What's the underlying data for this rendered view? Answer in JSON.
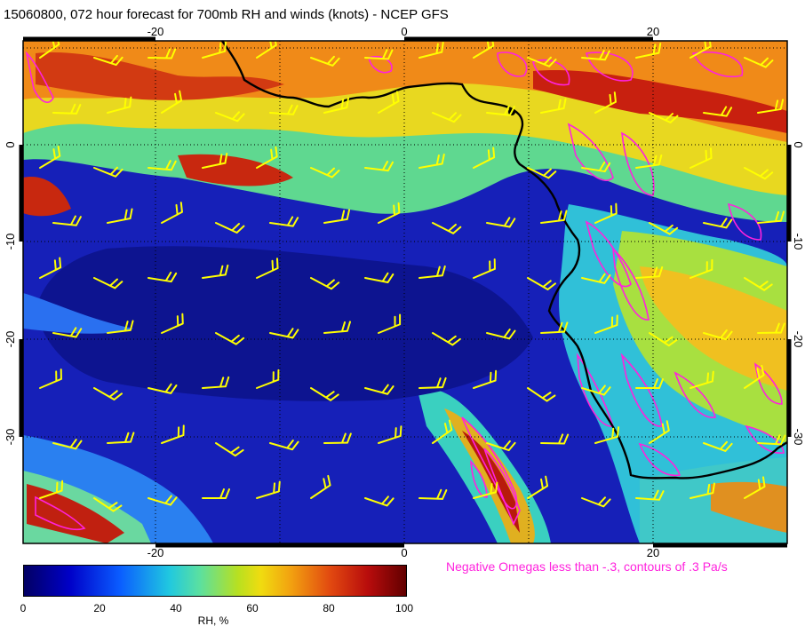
{
  "title": "15060800, 072 hour forecast for 700mb RH and winds (knots) - NCEP GFS",
  "map": {
    "lon_ticks": [
      "-20",
      "0",
      "20"
    ],
    "lat_ticks": [
      "0",
      "-10",
      "-20",
      "-30"
    ],
    "layers": [
      "relative-humidity-shading",
      "wind-barbs",
      "omega-contours",
      "coastline",
      "lat-lon-grid"
    ],
    "wind_barb_color": "#ffff00",
    "omega_contour_color": "#ff22dd",
    "coastline_color": "#000000"
  },
  "legend": {
    "note": "Negative Omegas less than -.3, contours of .3 Pa/s",
    "colorbar": {
      "label": "RH, %",
      "ticks": [
        "0",
        "20",
        "40",
        "60",
        "80",
        "100"
      ],
      "colors": [
        "#020063",
        "#0000c8",
        "#0a5cff",
        "#20c8e0",
        "#5be0a0",
        "#b8e020",
        "#f0dc10",
        "#f2a010",
        "#e24a10",
        "#b80c0c",
        "#620000"
      ]
    }
  }
}
